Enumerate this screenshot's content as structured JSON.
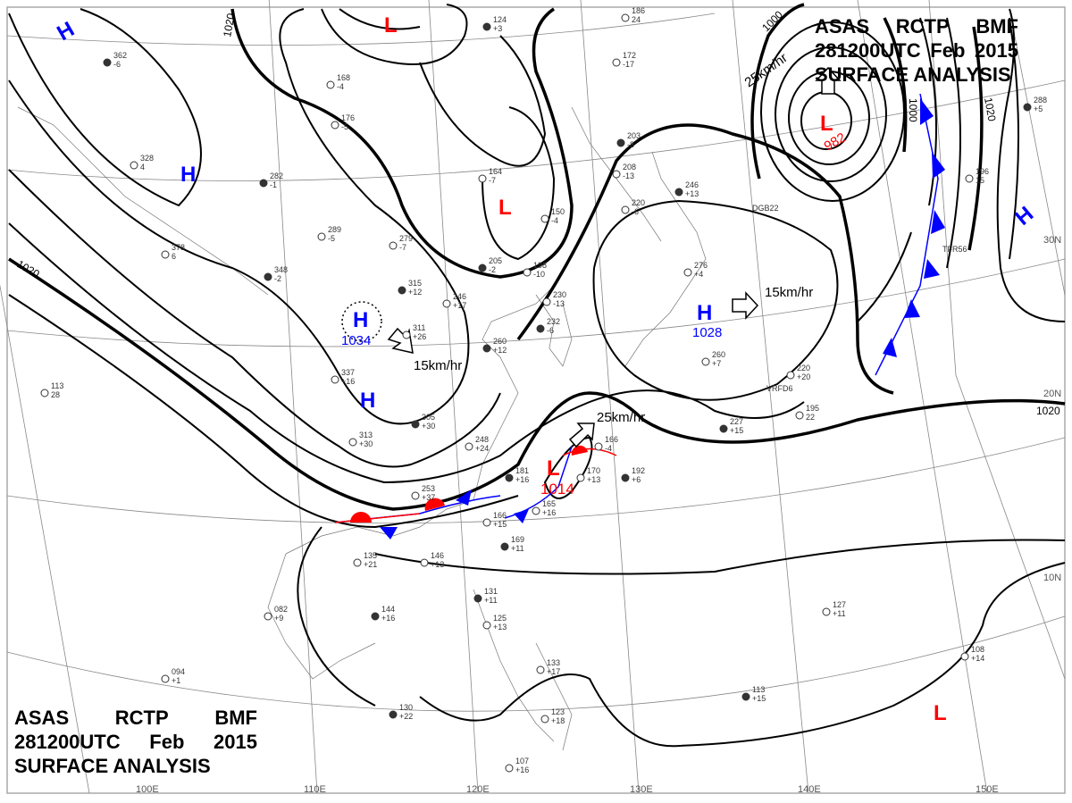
{
  "header": {
    "line1": [
      "ASAS",
      "RCTP",
      "BMF"
    ],
    "line2": [
      "281200UTC",
      "Feb",
      "2015"
    ],
    "line3": "SURFACE ANALYSIS"
  },
  "longitudes": [
    "100E",
    "110E",
    "120E",
    "130E",
    "140E",
    "150E"
  ],
  "latitudes": [
    "30N",
    "20N",
    "10N"
  ],
  "isobar_labels": [
    "1020",
    "1020",
    "1020",
    "1000",
    "1000",
    "1020"
  ],
  "centers": [
    {
      "type": "H",
      "pressure": ""
    },
    {
      "type": "H",
      "pressure": ""
    },
    {
      "type": "H",
      "pressure": "1034"
    },
    {
      "type": "H",
      "pressure": ""
    },
    {
      "type": "L",
      "pressure": ""
    },
    {
      "type": "L",
      "pressure": ""
    },
    {
      "type": "H",
      "pressure": "1028"
    },
    {
      "type": "L",
      "pressure": "982"
    },
    {
      "type": "L",
      "pressure": "1014"
    },
    {
      "type": "H",
      "pressure": ""
    },
    {
      "type": "L",
      "pressure": ""
    }
  ],
  "motions": [
    "15km/hr",
    "15km/hr",
    "25km/hr",
    "25km/hr"
  ],
  "ship_labels": [
    "TFR56",
    "VRFD6",
    "DGB22"
  ],
  "stations": [
    {
      "p": "362",
      "t": "-6"
    },
    {
      "p": "328",
      "t": "4"
    },
    {
      "p": "378",
      "t": "6"
    },
    {
      "p": "348",
      "t": "-2"
    },
    {
      "p": "168",
      "t": "-4"
    },
    {
      "p": "176",
      "t": "-5"
    },
    {
      "p": "282",
      "t": "-1"
    },
    {
      "p": "289",
      "t": "-5"
    },
    {
      "p": "279",
      "t": "-7"
    },
    {
      "p": "315",
      "t": "+12"
    },
    {
      "p": "311",
      "t": "+26"
    },
    {
      "p": "337",
      "t": "+16"
    },
    {
      "p": "305",
      "t": "+30"
    },
    {
      "p": "313",
      "t": "+30"
    },
    {
      "p": "246",
      "t": "+17"
    },
    {
      "p": "260",
      "t": "+12"
    },
    {
      "p": "248",
      "t": "+24"
    },
    {
      "p": "253",
      "t": "+37"
    },
    {
      "p": "205",
      "t": "-2"
    },
    {
      "p": "198",
      "t": "-10"
    },
    {
      "p": "230",
      "t": "-13"
    },
    {
      "p": "232",
      "t": "-6"
    },
    {
      "p": "164",
      "t": "-7"
    },
    {
      "p": "150",
      "t": "-4"
    },
    {
      "p": "203",
      "t": "-8"
    },
    {
      "p": "208",
      "t": "-13"
    },
    {
      "p": "220",
      "t": "-6"
    },
    {
      "p": "246",
      "t": "+13"
    },
    {
      "p": "276",
      "t": "+4"
    },
    {
      "p": "260",
      "t": "+7"
    },
    {
      "p": "181",
      "t": "+16"
    },
    {
      "p": "166",
      "t": "-4"
    },
    {
      "p": "170",
      "t": "+13"
    },
    {
      "p": "192",
      "t": "+6"
    },
    {
      "p": "165",
      "t": "+16"
    },
    {
      "p": "166",
      "t": "+15"
    },
    {
      "p": "169",
      "t": "+11"
    },
    {
      "p": "135",
      "t": "+21"
    },
    {
      "p": "146",
      "t": "+13"
    },
    {
      "p": "144",
      "t": "+16"
    },
    {
      "p": "082",
      "t": "+9"
    },
    {
      "p": "094",
      "t": "+1"
    },
    {
      "p": "131",
      "t": "+11"
    },
    {
      "p": "125",
      "t": "+13"
    },
    {
      "p": "133",
      "t": "+17"
    },
    {
      "p": "130",
      "t": "+22"
    },
    {
      "p": "123",
      "t": "+18"
    },
    {
      "p": "107",
      "t": "+16"
    },
    {
      "p": "113",
      "t": "+15"
    },
    {
      "p": "127",
      "t": "+11"
    },
    {
      "p": "108",
      "t": "+14"
    },
    {
      "p": "227",
      "t": "+15"
    },
    {
      "p": "195",
      "t": "22"
    },
    {
      "p": "220",
      "t": "+20"
    },
    {
      "p": "288",
      "t": "+5"
    },
    {
      "p": "196",
      "t": "15"
    },
    {
      "p": "113",
      "t": "28"
    },
    {
      "p": "124",
      "t": "+3"
    },
    {
      "p": "186",
      "t": "24"
    },
    {
      "p": "172",
      "t": "-17"
    }
  ]
}
